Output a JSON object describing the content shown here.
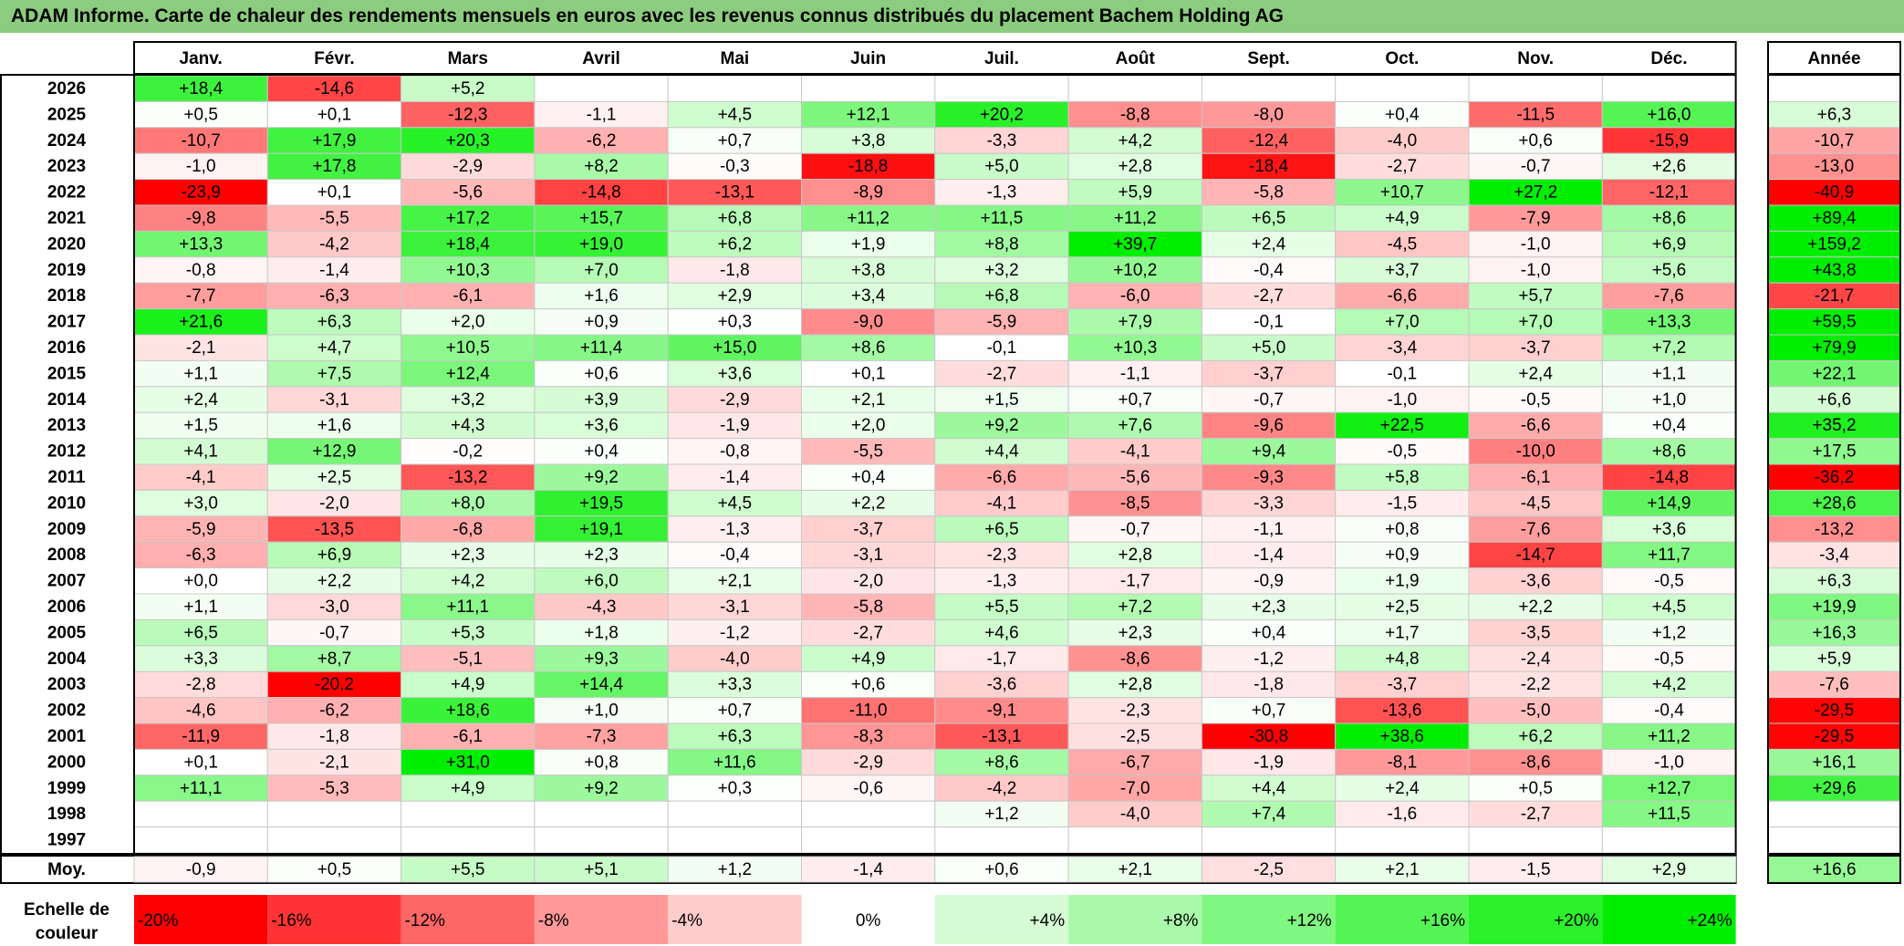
{
  "chart_data": {
    "type": "heatmap",
    "title": "ADAM Informe. Carte de chaleur des rendements mensuels en euros avec les revenus connus distribués du placement Bachem Holding AG",
    "months": [
      "Janv.",
      "Févr.",
      "Mars",
      "Avril",
      "Mai",
      "Juin",
      "Juil.",
      "Août",
      "Sept.",
      "Oct.",
      "Nov.",
      "Déc."
    ],
    "year_header": "Année",
    "rows": [
      {
        "year": "2026",
        "values": [
          "+18,4",
          "-14,6",
          "+5,2",
          "",
          "",
          "",
          "",
          "",
          "",
          "",
          "",
          ""
        ],
        "annual": ""
      },
      {
        "year": "2025",
        "values": [
          "+0,5",
          "+0,1",
          "-12,3",
          "-1,1",
          "+4,5",
          "+12,1",
          "+20,2",
          "-8,8",
          "-8,0",
          "+0,4",
          "-11,5",
          "+16,0"
        ],
        "annual": "+6,3"
      },
      {
        "year": "2024",
        "values": [
          "-10,7",
          "+17,9",
          "+20,3",
          "-6,2",
          "+0,7",
          "+3,8",
          "-3,3",
          "+4,2",
          "-12,4",
          "-4,0",
          "+0,6",
          "-15,9"
        ],
        "annual": "-10,7"
      },
      {
        "year": "2023",
        "values": [
          "-1,0",
          "+17,8",
          "-2,9",
          "+8,2",
          "-0,3",
          "-18,8",
          "+5,0",
          "+2,8",
          "-18,4",
          "-2,7",
          "-0,7",
          "+2,6"
        ],
        "annual": "-13,0"
      },
      {
        "year": "2022",
        "values": [
          "-23,9",
          "+0,1",
          "-5,6",
          "-14,8",
          "-13,1",
          "-8,9",
          "-1,3",
          "+5,9",
          "-5,8",
          "+10,7",
          "+27,2",
          "-12,1"
        ],
        "annual": "-40,9"
      },
      {
        "year": "2021",
        "values": [
          "-9,8",
          "-5,5",
          "+17,2",
          "+15,7",
          "+6,8",
          "+11,2",
          "+11,5",
          "+11,2",
          "+6,5",
          "+4,9",
          "-7,9",
          "+8,6"
        ],
        "annual": "+89,4"
      },
      {
        "year": "2020",
        "values": [
          "+13,3",
          "-4,2",
          "+18,4",
          "+19,0",
          "+6,2",
          "+1,9",
          "+8,8",
          "+39,7",
          "+2,4",
          "-4,5",
          "-1,0",
          "+6,9"
        ],
        "annual": "+159,2"
      },
      {
        "year": "2019",
        "values": [
          "-0,8",
          "-1,4",
          "+10,3",
          "+7,0",
          "-1,8",
          "+3,8",
          "+3,2",
          "+10,2",
          "-0,4",
          "+3,7",
          "-1,0",
          "+5,6"
        ],
        "annual": "+43,8"
      },
      {
        "year": "2018",
        "values": [
          "-7,7",
          "-6,3",
          "-6,1",
          "+1,6",
          "+2,9",
          "+3,4",
          "+6,8",
          "-6,0",
          "-2,7",
          "-6,6",
          "+5,7",
          "-7,6"
        ],
        "annual": "-21,7"
      },
      {
        "year": "2017",
        "values": [
          "+21,6",
          "+6,3",
          "+2,0",
          "+0,9",
          "+0,3",
          "-9,0",
          "-5,9",
          "+7,9",
          "-0,1",
          "+7,0",
          "+7,0",
          "+13,3"
        ],
        "annual": "+59,5"
      },
      {
        "year": "2016",
        "values": [
          "-2,1",
          "+4,7",
          "+10,5",
          "+11,4",
          "+15,0",
          "+8,6",
          "-0,1",
          "+10,3",
          "+5,0",
          "-3,4",
          "-3,7",
          "+7,2"
        ],
        "annual": "+79,9"
      },
      {
        "year": "2015",
        "values": [
          "+1,1",
          "+7,5",
          "+12,4",
          "+0,6",
          "+3,6",
          "+0,1",
          "-2,7",
          "-1,1",
          "-3,7",
          "-0,1",
          "+2,4",
          "+1,1"
        ],
        "annual": "+22,1"
      },
      {
        "year": "2014",
        "values": [
          "+2,4",
          "-3,1",
          "+3,2",
          "+3,9",
          "-2,9",
          "+2,1",
          "+1,5",
          "+0,7",
          "-0,7",
          "-1,0",
          "-0,5",
          "+1,0"
        ],
        "annual": "+6,6"
      },
      {
        "year": "2013",
        "values": [
          "+1,5",
          "+1,6",
          "+4,3",
          "+3,6",
          "-1,9",
          "+2,0",
          "+9,2",
          "+7,6",
          "-9,6",
          "+22,5",
          "-6,6",
          "+0,4"
        ],
        "annual": "+35,2"
      },
      {
        "year": "2012",
        "values": [
          "+4,1",
          "+12,9",
          "-0,2",
          "+0,4",
          "-0,8",
          "-5,5",
          "+4,4",
          "-4,1",
          "+9,4",
          "-0,5",
          "-10,0",
          "+8,6"
        ],
        "annual": "+17,5"
      },
      {
        "year": "2011",
        "values": [
          "-4,1",
          "+2,5",
          "-13,2",
          "+9,2",
          "-1,4",
          "+0,4",
          "-6,6",
          "-5,6",
          "-9,3",
          "+5,8",
          "-6,1",
          "-14,8"
        ],
        "annual": "-36,2"
      },
      {
        "year": "2010",
        "values": [
          "+3,0",
          "-2,0",
          "+8,0",
          "+19,5",
          "+4,5",
          "+2,2",
          "-4,1",
          "-8,5",
          "-3,3",
          "-1,5",
          "-4,5",
          "+14,9"
        ],
        "annual": "+28,6"
      },
      {
        "year": "2009",
        "values": [
          "-5,9",
          "-13,5",
          "-6,8",
          "+19,1",
          "-1,3",
          "-3,7",
          "+6,5",
          "-0,7",
          "-1,1",
          "+0,8",
          "-7,6",
          "+3,6"
        ],
        "annual": "-13,2"
      },
      {
        "year": "2008",
        "values": [
          "-6,3",
          "+6,9",
          "+2,3",
          "+2,3",
          "-0,4",
          "-3,1",
          "-2,3",
          "+2,8",
          "-1,4",
          "+0,9",
          "-14,7",
          "+11,7"
        ],
        "annual": "-3,4"
      },
      {
        "year": "2007",
        "values": [
          "+0,0",
          "+2,2",
          "+4,2",
          "+6,0",
          "+2,1",
          "-2,0",
          "-1,3",
          "-1,7",
          "-0,9",
          "+1,9",
          "-3,6",
          "-0,5"
        ],
        "annual": "+6,3"
      },
      {
        "year": "2006",
        "values": [
          "+1,1",
          "-3,0",
          "+11,1",
          "-4,3",
          "-3,1",
          "-5,8",
          "+5,5",
          "+7,2",
          "+2,3",
          "+2,5",
          "+2,2",
          "+4,5"
        ],
        "annual": "+19,9"
      },
      {
        "year": "2005",
        "values": [
          "+6,5",
          "-0,7",
          "+5,3",
          "+1,8",
          "-1,2",
          "-2,7",
          "+4,6",
          "+2,3",
          "+0,4",
          "+1,7",
          "-3,5",
          "+1,2"
        ],
        "annual": "+16,3"
      },
      {
        "year": "2004",
        "values": [
          "+3,3",
          "+8,7",
          "-5,1",
          "+9,3",
          "-4,0",
          "+4,9",
          "-1,7",
          "-8,6",
          "-1,2",
          "+4,8",
          "-2,4",
          "-0,5"
        ],
        "annual": "+5,9"
      },
      {
        "year": "2003",
        "values": [
          "-2,8",
          "-20,2",
          "+4,9",
          "+14,4",
          "+3,3",
          "+0,6",
          "-3,6",
          "+2,8",
          "-1,8",
          "-3,7",
          "-2,2",
          "+4,2"
        ],
        "annual": "-7,6"
      },
      {
        "year": "2002",
        "values": [
          "-4,6",
          "-6,2",
          "+18,6",
          "+1,0",
          "+0,7",
          "-11,0",
          "-9,1",
          "-2,3",
          "+0,7",
          "-13,6",
          "-5,0",
          "-0,4"
        ],
        "annual": "-29,5"
      },
      {
        "year": "2001",
        "values": [
          "-11,9",
          "-1,8",
          "-6,1",
          "-7,3",
          "+6,3",
          "-8,3",
          "-13,1",
          "-2,5",
          "-30,8",
          "+38,6",
          "+6,2",
          "+11,2"
        ],
        "annual": "-29,5"
      },
      {
        "year": "2000",
        "values": [
          "+0,1",
          "-2,1",
          "+31,0",
          "+0,8",
          "+11,6",
          "-2,9",
          "+8,6",
          "-6,7",
          "-1,9",
          "-8,1",
          "-8,6",
          "-1,0"
        ],
        "annual": "+16,1"
      },
      {
        "year": "1999",
        "values": [
          "+11,1",
          "-5,3",
          "+4,9",
          "+9,2",
          "+0,3",
          "-0,6",
          "-4,2",
          "-7,0",
          "+4,4",
          "+2,4",
          "+0,5",
          "+12,7"
        ],
        "annual": "+29,6"
      },
      {
        "year": "1998",
        "values": [
          "",
          "",
          "",
          "",
          "",
          "",
          "+1,2",
          "-4,0",
          "+7,4",
          "-1,6",
          "-2,7",
          "+11,5"
        ],
        "annual": ""
      },
      {
        "year": "1997",
        "values": [
          "",
          "",
          "",
          "",
          "",
          "",
          "",
          "",
          "",
          "",
          "",
          ""
        ],
        "annual": ""
      }
    ],
    "average": {
      "label": "Moy.",
      "values": [
        "-0,9",
        "+0,5",
        "+5,5",
        "+5,1",
        "+1,2",
        "-1,4",
        "+0,6",
        "+2,1",
        "-2,5",
        "+2,1",
        "-1,5",
        "+2,9"
      ],
      "annual": "+16,6"
    },
    "legend": {
      "label": "Echelle de couleur",
      "steps": [
        {
          "label": "-20%",
          "value": -20
        },
        {
          "label": "-16%",
          "value": -16
        },
        {
          "label": "-12%",
          "value": -12
        },
        {
          "label": "-8%",
          "value": -8
        },
        {
          "label": "-4%",
          "value": -4
        },
        {
          "label": "0%",
          "value": 0
        },
        {
          "label": "+4%",
          "value": 4
        },
        {
          "label": "+8%",
          "value": 8
        },
        {
          "label": "+12%",
          "value": 12
        },
        {
          "label": "+16%",
          "value": 16
        },
        {
          "label": "+20%",
          "value": 20
        },
        {
          "label": "+24%",
          "value": 24
        }
      ]
    },
    "colors": {
      "title_bar": "#8ccc7e",
      "negative_max": "#ff0000",
      "positive_max": "#00ee00",
      "neutral": "#ffffff",
      "grid": "#c8c8c8",
      "border": "#000000"
    }
  }
}
